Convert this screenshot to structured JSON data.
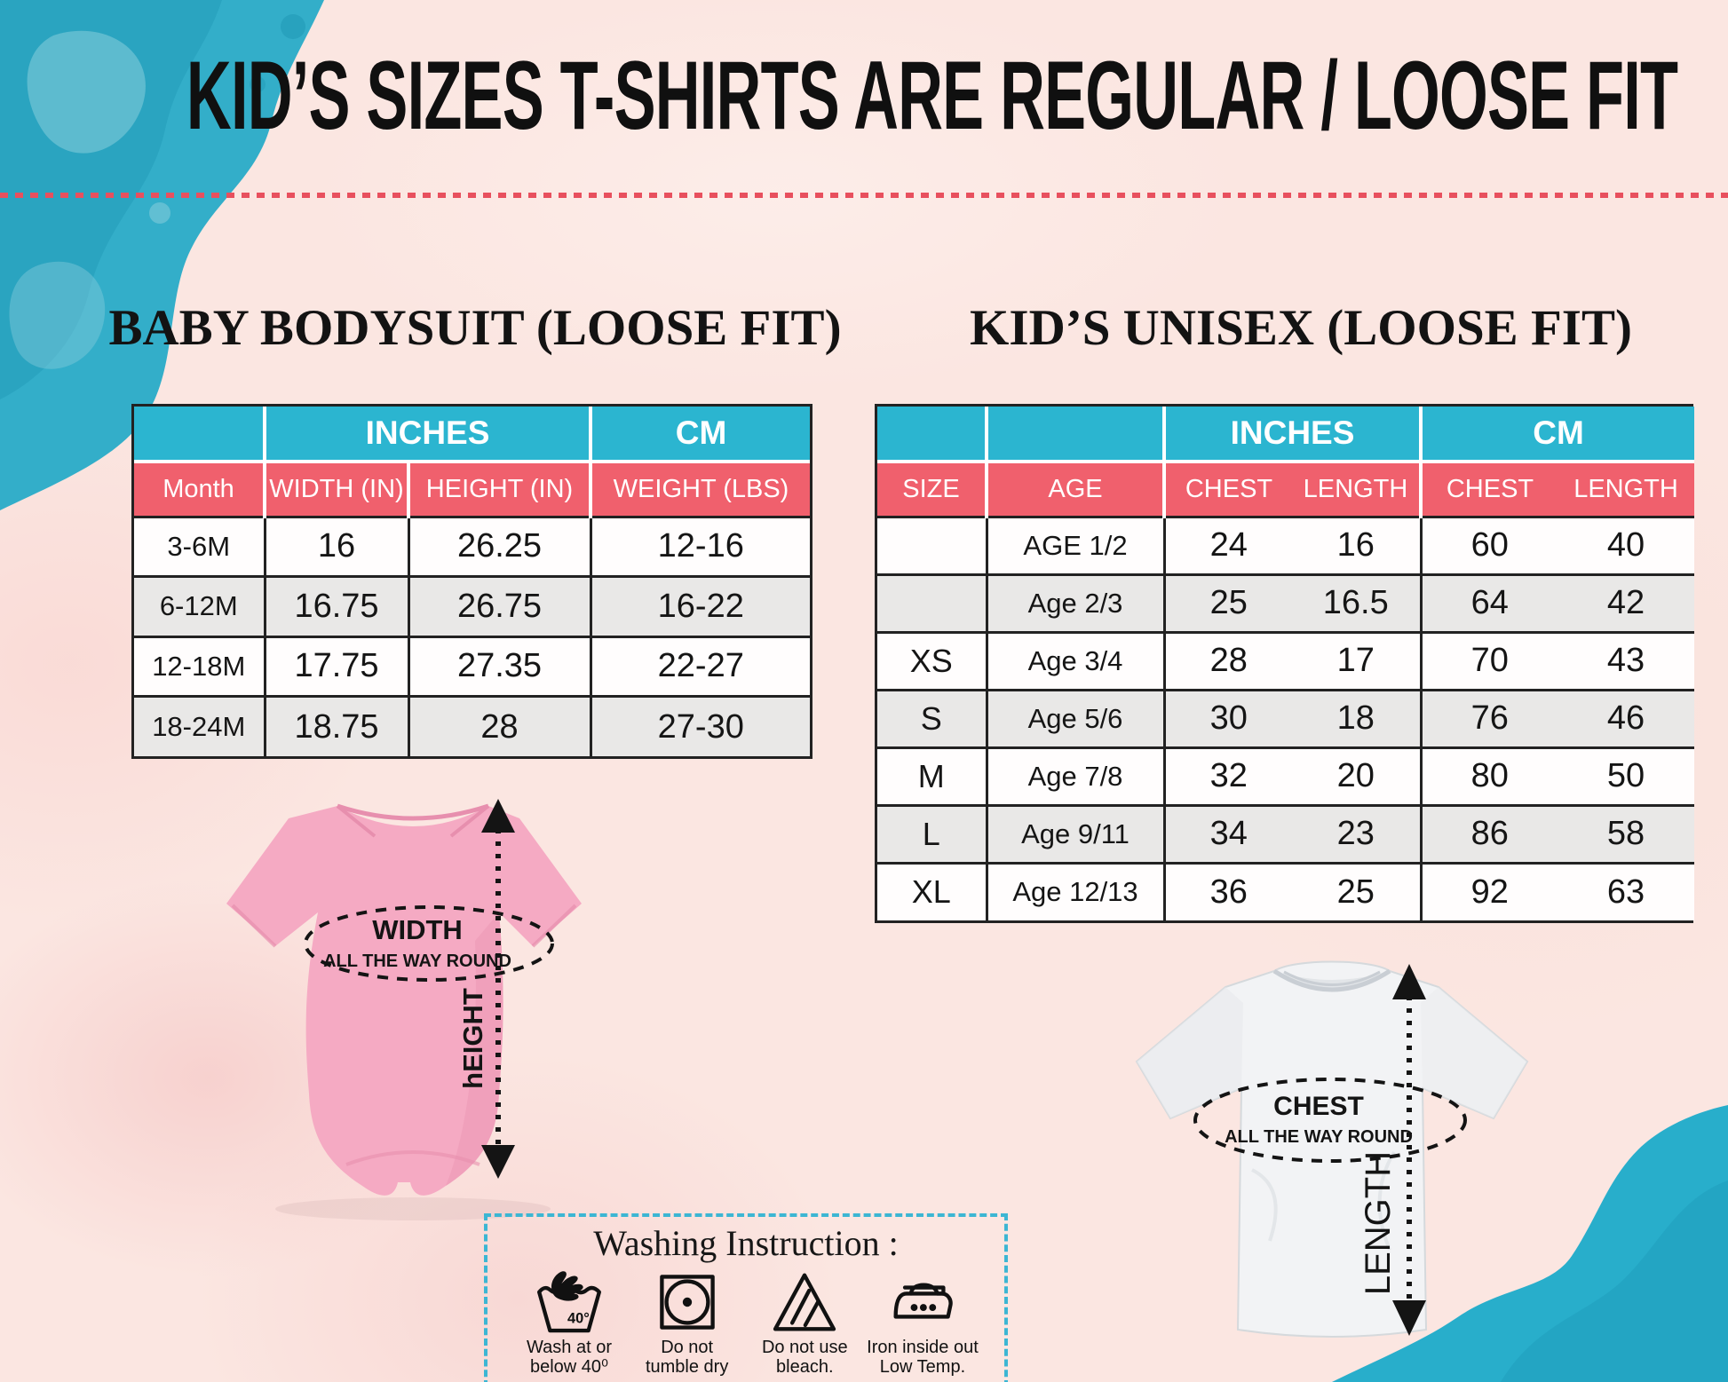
{
  "page": {
    "title": "KID’S SIZES T-SHIRTS ARE REGULAR / LOOSE FIT"
  },
  "baby_section": {
    "heading": "BABY BODYSUIT (LOOSE FIT)",
    "table": {
      "group_cols": {
        "inches": "INCHES",
        "cm": "CM"
      },
      "columns": [
        "Month",
        "WIDTH (IN)",
        "HEIGHT (IN)",
        "WEIGHT (LBS)"
      ],
      "rows": [
        [
          "3-6M",
          "16",
          "26.25",
          "12-16"
        ],
        [
          "6-12M",
          "16.75",
          "26.75",
          "16-22"
        ],
        [
          "12-18M",
          "17.75",
          "27.35",
          "22-27"
        ],
        [
          "18-24M",
          "18.75",
          "28",
          "27-30"
        ]
      ]
    },
    "diagram": {
      "width_label": "WIDTH",
      "round_label": "ALL THE WAY ROUND",
      "height_label": "hEIGHT"
    }
  },
  "kids_section": {
    "heading": "KID’S UNISEX (LOOSE FIT)",
    "table": {
      "group_cols": {
        "inches": "INCHES",
        "cm": "CM"
      },
      "columns": [
        "SIZE",
        "AGE",
        "CHEST",
        "LENGTH",
        "CHEST",
        "LENGTH"
      ],
      "rows": [
        [
          "",
          "AGE 1/2",
          "24",
          "16",
          "60",
          "40"
        ],
        [
          "",
          "Age 2/3",
          "25",
          "16.5",
          "64",
          "42"
        ],
        [
          "XS",
          "Age 3/4",
          "28",
          "17",
          "70",
          "43"
        ],
        [
          "S",
          "Age 5/6",
          "30",
          "18",
          "76",
          "46"
        ],
        [
          "M",
          "Age 7/8",
          "32",
          "20",
          "80",
          "50"
        ],
        [
          "L",
          "Age 9/11",
          "34",
          "23",
          "86",
          "58"
        ],
        [
          "XL",
          "Age 12/13",
          "36",
          "25",
          "92",
          "63"
        ]
      ]
    },
    "diagram": {
      "chest_label": "CHEST",
      "round_label": "ALL THE WAY ROUND",
      "length_label": "LENGTH"
    }
  },
  "washing": {
    "title": "Washing Instruction :",
    "items": [
      {
        "icon": "hand-wash-40-icon",
        "line1": "Wash at or",
        "line2": "below 40⁰",
        "badge": "40°"
      },
      {
        "icon": "do-not-tumble-dry-icon",
        "line1": "Do not",
        "line2": "tumble dry"
      },
      {
        "icon": "do-not-bleach-icon",
        "line1": "Do not use",
        "line2": "bleach."
      },
      {
        "icon": "iron-inside-out-icon",
        "line1": "Iron inside out",
        "line2": "Low Temp."
      }
    ]
  },
  "colors": {
    "teal_header": "#2bb5d0",
    "red_header": "#f0606d",
    "background_pink": "#fbe6e1",
    "teal_blob": "#2fafca",
    "dashed_line_red": "#e8505e",
    "washing_border_teal": "#3cb6d3",
    "bodysuit_pink": "#f5aac3",
    "tshirt_white": "#f2f3f5"
  }
}
